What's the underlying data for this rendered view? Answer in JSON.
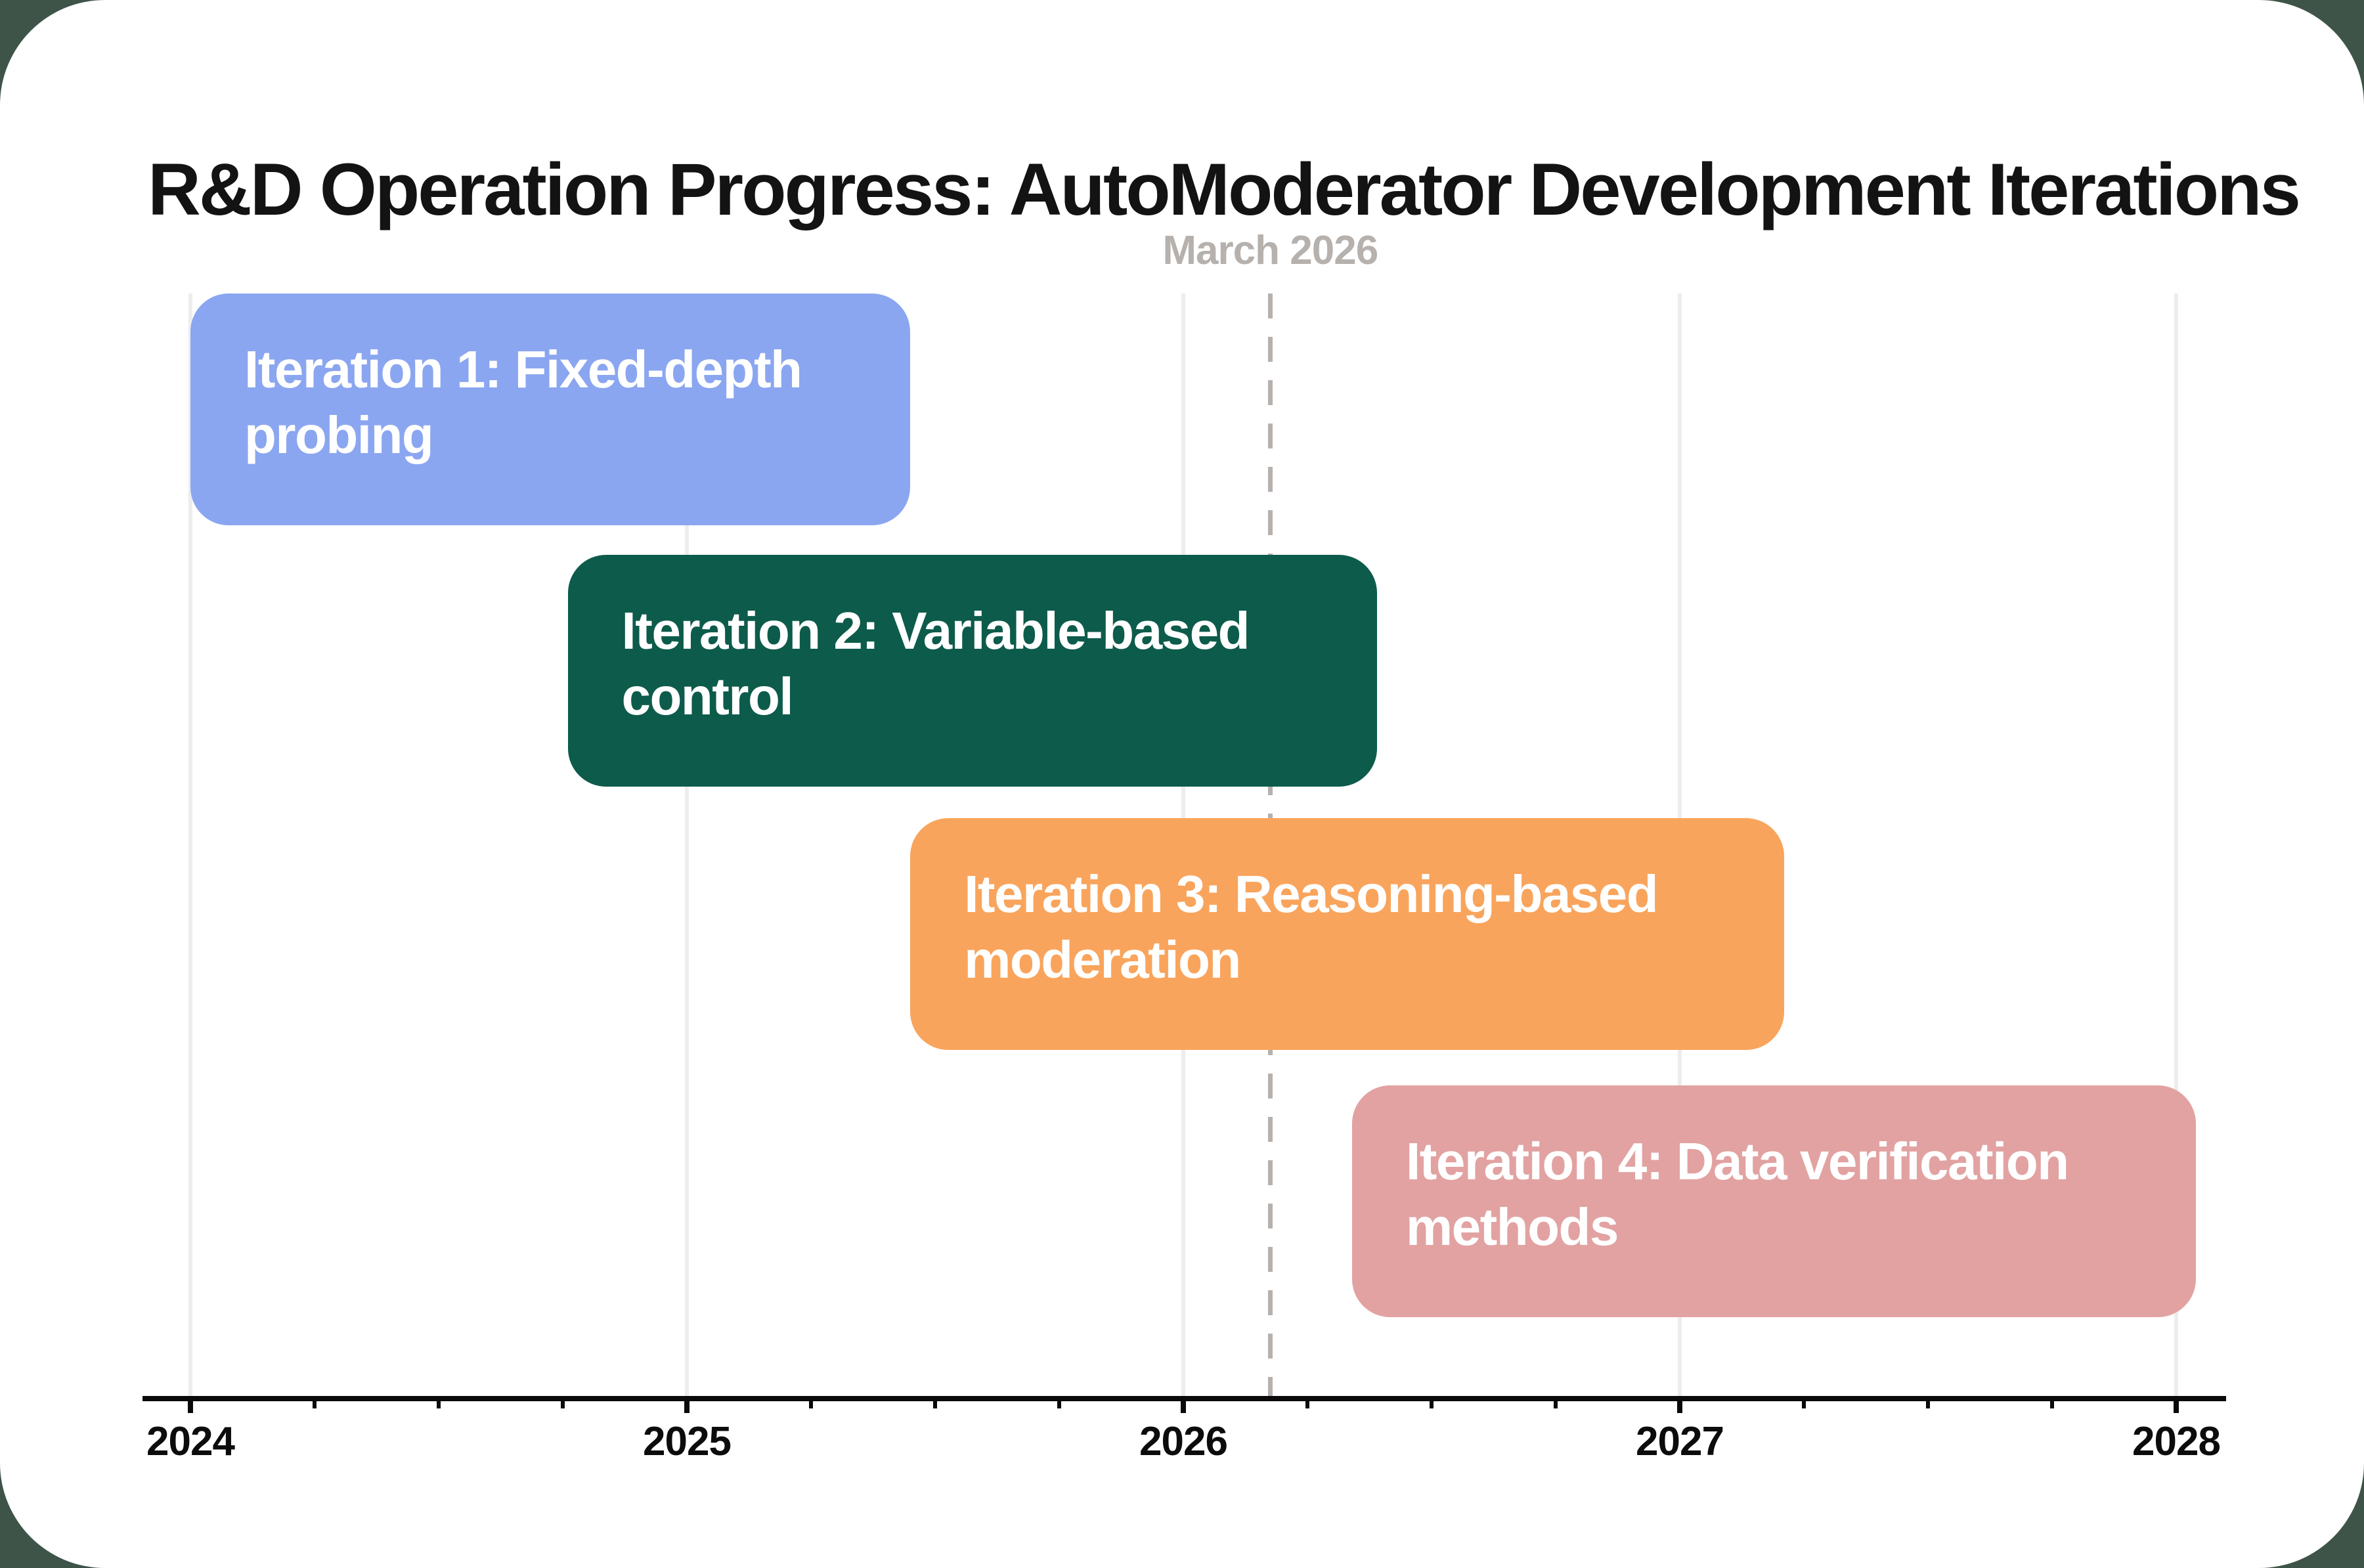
{
  "page": {
    "title": "R&D Operation Progress: AutoModerator Development Iterations"
  },
  "colors": {
    "page_background": "#3E5449",
    "card_background": "#FFFFFF",
    "title_text": "#131313",
    "axis": "#0A0A0A",
    "tick_label": "#0C0C0C",
    "gridline": "#EDEDED",
    "annotation": "#B7B1AD",
    "bar_text": "#FFFFFF"
  },
  "chart_data": {
    "type": "bar",
    "subtype": "gantt-timeline",
    "title": "R&D Operation Progress: AutoModerator Development Iterations",
    "xlabel": "",
    "ylabel": "",
    "x_axis": {
      "range": [
        2023.9,
        2028.1
      ],
      "major_ticks": [
        2024,
        2025,
        2026,
        2027,
        2028
      ],
      "tick_labels": [
        "2024",
        "2025",
        "2026",
        "2027",
        "2028"
      ],
      "minor_tick_interval_years": 0.25,
      "grid": "vertical-year-lines"
    },
    "annotation": {
      "label": "March 2026",
      "x": 2026.175,
      "style": "vertical-dashed-line"
    },
    "tasks": [
      {
        "label": "Iteration 1: Fixed-depth probing",
        "lines": [
          "Iteration 1: Fixed-depth",
          "probing"
        ],
        "start": 2024.0,
        "end": 2025.45,
        "color": "#8BA6F0"
      },
      {
        "label": "Iteration 2: Variable-based control",
        "lines": [
          "Iteration 2: Variable-based",
          "control"
        ],
        "start": 2024.76,
        "end": 2026.39,
        "color": "#0D5B4B"
      },
      {
        "label": "Iteration 3: Reasoning-based moderation",
        "lines": [
          "Iteration 3: Reasoning-based",
          "moderation"
        ],
        "start": 2025.45,
        "end": 2027.21,
        "color": "#F9A45C"
      },
      {
        "label": "Iteration 4: Data verification methods",
        "lines": [
          "Iteration 4: Data verification",
          "methods"
        ],
        "start": 2026.34,
        "end": 2028.04,
        "color": "#E2A2A2"
      }
    ],
    "legend": "none"
  }
}
